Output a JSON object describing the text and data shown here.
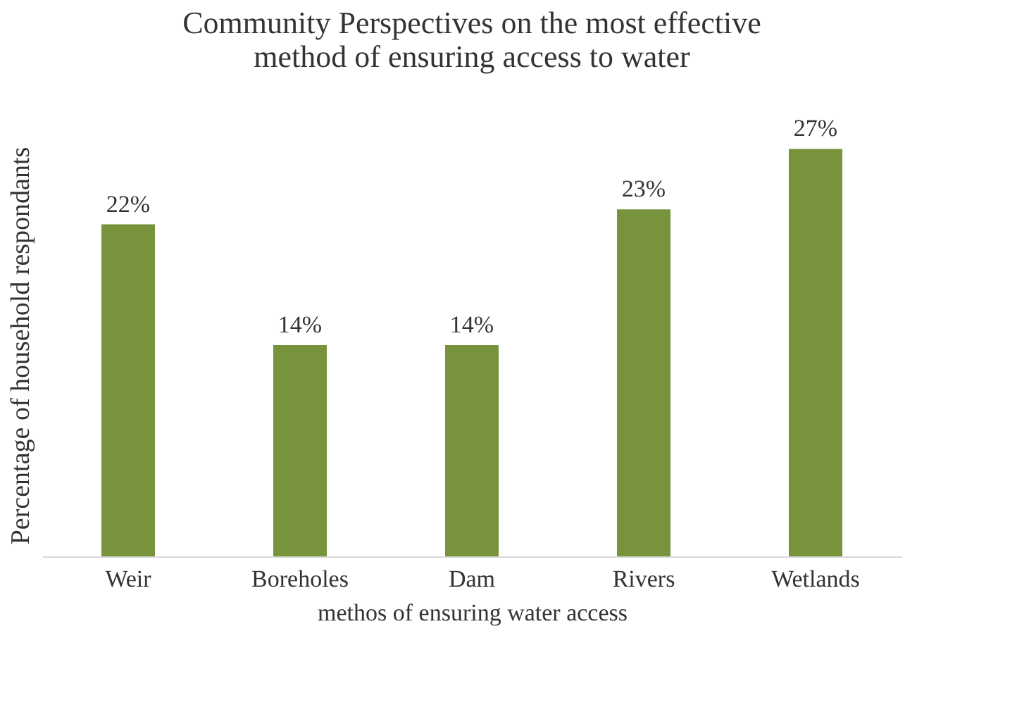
{
  "chart_data": {
    "type": "bar",
    "title": "Community Perspectives on the most effective method of ensuring access to water",
    "categories": [
      "Weir",
      "Boreholes",
      "Dam",
      "Rivers",
      "Wetlands"
    ],
    "values": [
      22,
      14,
      14,
      23,
      27
    ],
    "value_labels": [
      "22%",
      "14%",
      "14%",
      "23%",
      "27%"
    ],
    "color": "#77933c",
    "xlabel": "methos of ensuring water access",
    "ylabel": "Percentage of household respondants",
    "grid": false
  }
}
